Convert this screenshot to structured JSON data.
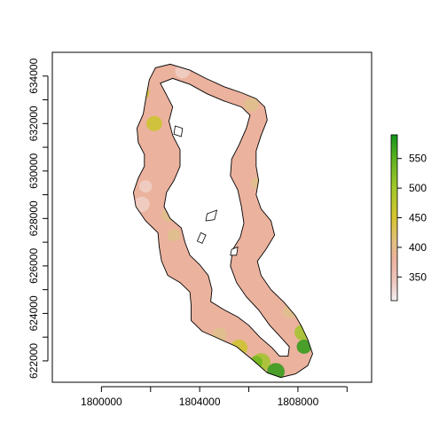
{
  "map": {
    "x_axis": {
      "min": 1798000,
      "max": 1811000,
      "ticks": [
        1800000,
        1802000,
        1804000,
        1806000,
        1808000,
        1810000
      ],
      "labels": [
        "1800000",
        "",
        "1804000",
        "",
        "1808000",
        ""
      ]
    },
    "y_axis": {
      "min": 621100,
      "max": 635000,
      "ticks": [
        622000,
        623000,
        624000,
        625000,
        626000,
        627000,
        628000,
        629000,
        630000,
        631000,
        632000,
        633000,
        634000
      ],
      "labels": [
        "622000",
        "",
        "624000",
        "",
        "626000",
        "",
        "628000",
        "",
        "630000",
        "",
        "632000",
        "",
        "634000"
      ]
    },
    "raster": {
      "outer_boundary": [
        [
          1801950,
          633850
        ],
        [
          1802200,
          634350
        ],
        [
          1802800,
          634500
        ],
        [
          1803600,
          634250
        ],
        [
          1804250,
          633900
        ],
        [
          1805000,
          633550
        ],
        [
          1805700,
          633300
        ],
        [
          1806300,
          633050
        ],
        [
          1806650,
          632700
        ],
        [
          1806750,
          632150
        ],
        [
          1806500,
          631500
        ],
        [
          1806300,
          630850
        ],
        [
          1806300,
          630200
        ],
        [
          1806400,
          629600
        ],
        [
          1806300,
          629000
        ],
        [
          1806500,
          628400
        ],
        [
          1806900,
          627900
        ],
        [
          1807050,
          627300
        ],
        [
          1806700,
          626700
        ],
        [
          1806350,
          626200
        ],
        [
          1806500,
          625600
        ],
        [
          1806900,
          625000
        ],
        [
          1807450,
          624450
        ],
        [
          1807900,
          623900
        ],
        [
          1808150,
          623450
        ],
        [
          1808400,
          622900
        ],
        [
          1808600,
          622300
        ],
        [
          1808400,
          621800
        ],
        [
          1807900,
          621450
        ],
        [
          1807300,
          621300
        ],
        [
          1806750,
          621500
        ],
        [
          1806200,
          622000
        ],
        [
          1805500,
          622600
        ],
        [
          1804750,
          622950
        ],
        [
          1804100,
          623250
        ],
        [
          1803650,
          623700
        ],
        [
          1803650,
          624350
        ],
        [
          1803600,
          624900
        ],
        [
          1803200,
          625300
        ],
        [
          1802700,
          625600
        ],
        [
          1802450,
          626200
        ],
        [
          1802350,
          626800
        ],
        [
          1802300,
          627400
        ],
        [
          1801800,
          627900
        ],
        [
          1801400,
          628500
        ],
        [
          1801300,
          629100
        ],
        [
          1801500,
          629700
        ],
        [
          1801750,
          630200
        ],
        [
          1801750,
          630700
        ],
        [
          1801500,
          631200
        ],
        [
          1801450,
          631800
        ],
        [
          1801700,
          632400
        ],
        [
          1801800,
          633000
        ]
      ],
      "inner_boundary": [
        [
          1802400,
          633700
        ],
        [
          1802900,
          633900
        ],
        [
          1803600,
          633650
        ],
        [
          1804300,
          633250
        ],
        [
          1805000,
          632950
        ],
        [
          1805700,
          632700
        ],
        [
          1806050,
          632350
        ],
        [
          1805900,
          631800
        ],
        [
          1805600,
          631100
        ],
        [
          1805300,
          630500
        ],
        [
          1805250,
          629800
        ],
        [
          1805550,
          629200
        ],
        [
          1805700,
          628500
        ],
        [
          1805800,
          627800
        ],
        [
          1805650,
          627200
        ],
        [
          1805350,
          626700
        ],
        [
          1805250,
          626000
        ],
        [
          1805500,
          625300
        ],
        [
          1805900,
          624700
        ],
        [
          1806400,
          624150
        ],
        [
          1806850,
          623500
        ],
        [
          1807300,
          623000
        ],
        [
          1807650,
          622600
        ],
        [
          1807600,
          622200
        ],
        [
          1807250,
          622200
        ],
        [
          1806950,
          622550
        ],
        [
          1806450,
          623000
        ],
        [
          1806000,
          623500
        ],
        [
          1805550,
          623850
        ],
        [
          1805000,
          624150
        ],
        [
          1804450,
          624500
        ],
        [
          1804500,
          625000
        ],
        [
          1804350,
          625600
        ],
        [
          1804000,
          626050
        ],
        [
          1803600,
          626450
        ],
        [
          1803400,
          627000
        ],
        [
          1803250,
          627600
        ],
        [
          1802800,
          628000
        ],
        [
          1802550,
          628500
        ],
        [
          1802650,
          629100
        ],
        [
          1802950,
          629600
        ],
        [
          1803200,
          630200
        ],
        [
          1803200,
          630900
        ],
        [
          1802900,
          631500
        ],
        [
          1802750,
          632100
        ],
        [
          1802900,
          632700
        ],
        [
          1802650,
          633200
        ]
      ],
      "colors": {
        "base": "#EBB29E",
        "pale": "#F1CFC6",
        "tan": "#DFC08A",
        "yellow": "#CBC42C",
        "green_light": "#A2C42A",
        "green_mid": "#70B61F",
        "green_dark": "#2E9A15",
        "outline": "#000000"
      },
      "patches": [
        {
          "x": 1801650,
          "y": 633300,
          "r": 300,
          "color": "yellow"
        },
        {
          "x": 1802150,
          "y": 632000,
          "r": 320,
          "color": "yellow"
        },
        {
          "x": 1801800,
          "y": 629350,
          "r": 260,
          "color": "pale"
        },
        {
          "x": 1801650,
          "y": 628600,
          "r": 320,
          "color": "pale"
        },
        {
          "x": 1802750,
          "y": 628150,
          "r": 300,
          "color": "tan"
        },
        {
          "x": 1802950,
          "y": 627300,
          "r": 260,
          "color": "tan"
        },
        {
          "x": 1803300,
          "y": 624900,
          "r": 250,
          "color": "tan"
        },
        {
          "x": 1804800,
          "y": 623100,
          "r": 300,
          "color": "tan"
        },
        {
          "x": 1805600,
          "y": 622550,
          "r": 350,
          "color": "yellow"
        },
        {
          "x": 1806500,
          "y": 621950,
          "r": 380,
          "color": "green_light"
        },
        {
          "x": 1807100,
          "y": 621550,
          "r": 360,
          "color": "green_dark"
        },
        {
          "x": 1806300,
          "y": 621950,
          "r": 260,
          "color": "green_mid"
        },
        {
          "x": 1808200,
          "y": 623200,
          "r": 340,
          "color": "green_light"
        },
        {
          "x": 1808250,
          "y": 622600,
          "r": 300,
          "color": "green_dark"
        },
        {
          "x": 1807700,
          "y": 624100,
          "r": 300,
          "color": "tan"
        },
        {
          "x": 1806350,
          "y": 629500,
          "r": 250,
          "color": "tan"
        },
        {
          "x": 1806100,
          "y": 632800,
          "r": 300,
          "color": "tan"
        },
        {
          "x": 1803300,
          "y": 634200,
          "r": 300,
          "color": "pale"
        }
      ],
      "lakes": [
        [
          [
            1803000,
            631900
          ],
          [
            1803300,
            631800
          ],
          [
            1803250,
            631450
          ],
          [
            1802950,
            631550
          ]
        ],
        [
          [
            1804300,
            628200
          ],
          [
            1804700,
            628350
          ],
          [
            1804600,
            627950
          ],
          [
            1804250,
            627900
          ]
        ],
        [
          [
            1804050,
            627400
          ],
          [
            1804250,
            627300
          ],
          [
            1804100,
            626950
          ],
          [
            1803900,
            627050
          ]
        ],
        [
          [
            1805300,
            626700
          ],
          [
            1805550,
            626800
          ],
          [
            1805500,
            626450
          ],
          [
            1805250,
            626450
          ]
        ]
      ]
    },
    "legend": {
      "min": 310,
      "max": 590,
      "ticks": [
        350,
        400,
        450,
        500,
        550
      ],
      "labels": [
        "350",
        "400",
        "450",
        "500",
        "550"
      ],
      "gradient": [
        {
          "value": 310,
          "color": "#F2F2F2"
        },
        {
          "value": 340,
          "color": "#EFC8C2"
        },
        {
          "value": 380,
          "color": "#EBB29E"
        },
        {
          "value": 410,
          "color": "#E3C07F"
        },
        {
          "value": 450,
          "color": "#D6C52E"
        },
        {
          "value": 500,
          "color": "#A3C92A"
        },
        {
          "value": 550,
          "color": "#5DB121"
        },
        {
          "value": 590,
          "color": "#14941A"
        }
      ]
    }
  }
}
